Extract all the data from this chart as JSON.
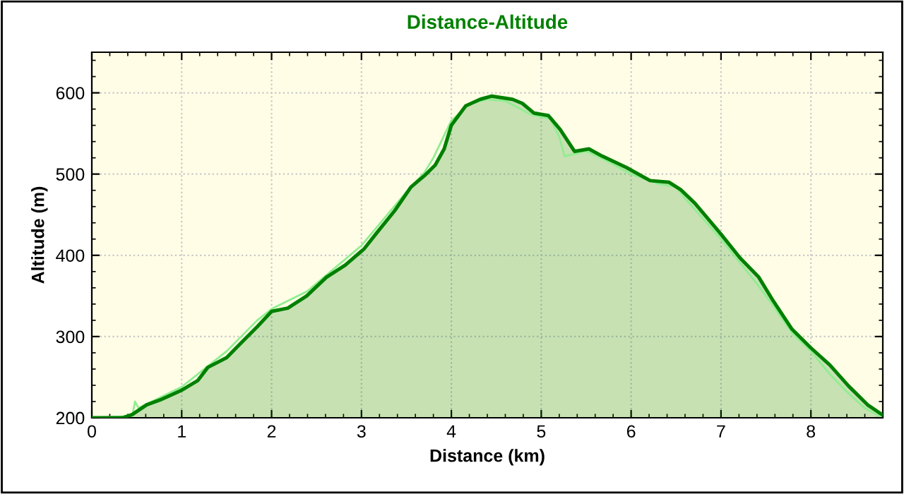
{
  "chart_data": {
    "type": "area",
    "title": "Distance-Altitude",
    "xlabel": "Distance (km)",
    "ylabel": "Altitude (m)",
    "xlim": [
      0,
      8.8
    ],
    "ylim": [
      200,
      650
    ],
    "xticks": [
      0,
      1,
      2,
      3,
      4,
      5,
      6,
      7,
      8
    ],
    "yticks": [
      200,
      300,
      400,
      500,
      600
    ],
    "grid": true,
    "line_style": "solid",
    "series": [
      {
        "type": "line",
        "color": "#90ee90",
        "x": [
          0,
          0.45,
          0.48,
          0.52,
          1.0,
          1.5,
          1.84,
          2.0,
          2.4,
          3.0,
          3.5,
          3.7,
          3.8,
          4.0,
          4.2,
          4.4,
          4.6,
          4.89,
          5.1,
          5.2,
          5.26,
          5.5,
          5.7,
          6.0,
          6.3,
          6.5,
          6.6,
          7.0,
          7.4,
          7.6,
          7.8,
          8.0,
          8.2,
          8.4,
          8.6,
          8.8
        ],
        "values": [
          200,
          202,
          220,
          212,
          238,
          282,
          320,
          334,
          356,
          412,
          478,
          502,
          520,
          566,
          586,
          592,
          590,
          573,
          568,
          546,
          522,
          528,
          518,
          500,
          488,
          484,
          470,
          420,
          365,
          335,
          303,
          282,
          255,
          232,
          212,
          200
        ]
      },
      {
        "color": "#008000",
        "x": [
          0,
          0.34,
          0.45,
          0.61,
          0.76,
          1.0,
          1.18,
          1.29,
          1.5,
          1.66,
          1.84,
          2.0,
          2.18,
          2.39,
          2.61,
          2.82,
          3.03,
          3.18,
          3.37,
          3.55,
          3.71,
          3.82,
          3.92,
          4.0,
          4.16,
          4.32,
          4.45,
          4.68,
          4.79,
          4.92,
          5.08,
          5.21,
          5.37,
          5.53,
          5.68,
          5.95,
          6.21,
          6.42,
          6.55,
          6.71,
          7.0,
          7.21,
          7.42,
          7.58,
          7.79,
          8.0,
          8.21,
          8.42,
          8.63,
          8.79
        ],
        "values": [
          200,
          200,
          204,
          216,
          222,
          234,
          246,
          262,
          274,
          292,
          312,
          331,
          335,
          350,
          373,
          388,
          408,
          429,
          455,
          484,
          499,
          511,
          531,
          560,
          584,
          592,
          596,
          592,
          587,
          575,
          572,
          555,
          528,
          531,
          522,
          508,
          492,
          490,
          481,
          464,
          426,
          397,
          373,
          344,
          309,
          286,
          265,
          239,
          216,
          204
        ]
      }
    ]
  }
}
